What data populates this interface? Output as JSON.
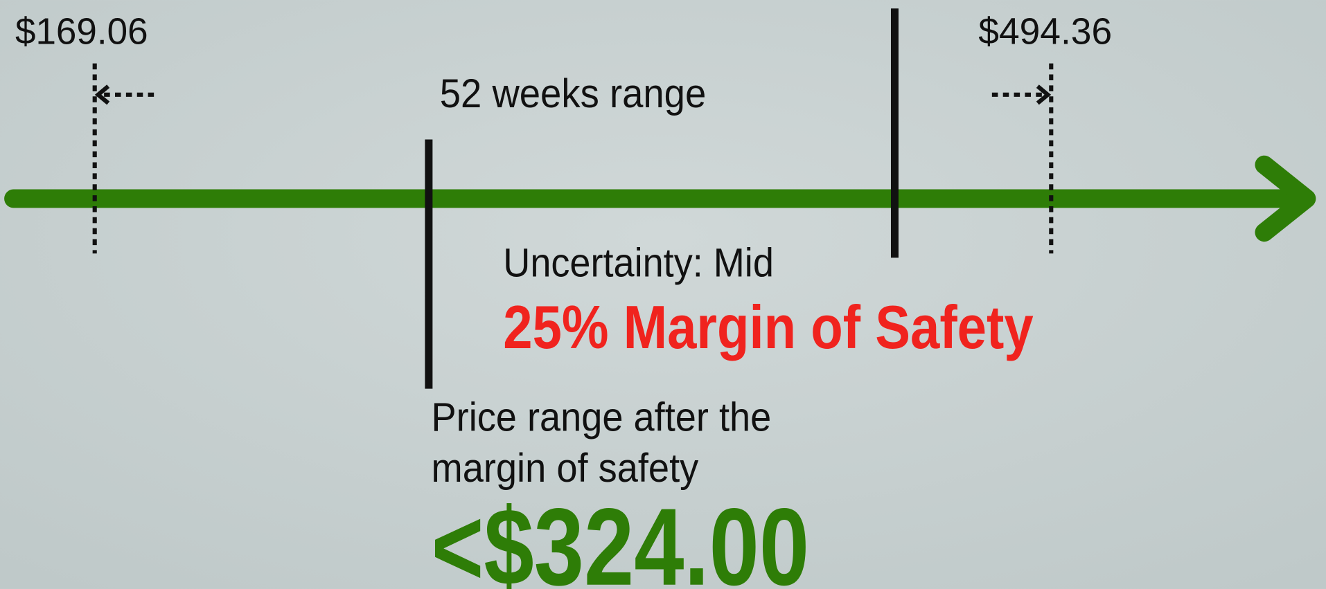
{
  "low_price": "$169.06",
  "high_price": "$494.36",
  "range_label": "52 weeks range",
  "uncertainty": "Uncertainty: Mid",
  "margin_of_safety": "25% Margin of Safety",
  "price_note": [
    "Price range after the",
    "margin of safety"
  ],
  "target_price": "<$324.00"
}
